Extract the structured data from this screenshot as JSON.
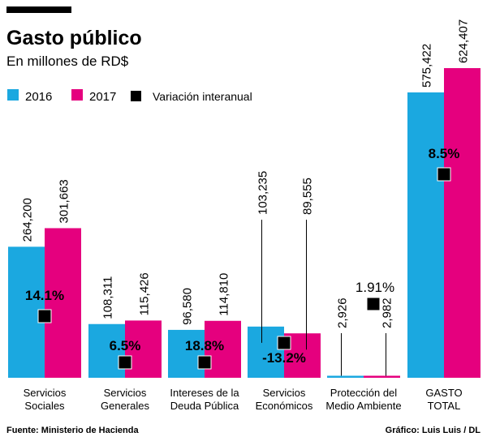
{
  "chart_data": {
    "type": "bar",
    "title": "Gasto público",
    "subtitle": "En millones de RD$",
    "categories": [
      [
        "Servicios",
        "Sociales"
      ],
      [
        "Servicios",
        "Generales"
      ],
      [
        "Intereses de la",
        "Deuda Pública"
      ],
      [
        "Servicios",
        "Económicos"
      ],
      [
        "Protección del",
        "Medio Ambiente"
      ],
      [
        "GASTO",
        "TOTAL"
      ]
    ],
    "series": [
      {
        "name": "2016",
        "color": "#1ba8e0",
        "values": [
          264200,
          108311,
          96580,
          103235,
          2926,
          575422
        ],
        "labels": [
          "264,200",
          "108,311",
          "96,580",
          "103,235",
          "2,926",
          "575,422"
        ]
      },
      {
        "name": "2017",
        "color": "#e5007e",
        "values": [
          301663,
          115426,
          114810,
          89555,
          2982,
          624407
        ],
        "labels": [
          "301,663",
          "115,426",
          "114,810",
          "89,555",
          "2,982",
          "624,407"
        ]
      }
    ],
    "variation": {
      "name": "Variación interanual",
      "color": "#000000",
      "values": [
        14.1,
        6.5,
        18.8,
        -13.2,
        1.91,
        8.5
      ],
      "labels": [
        "14.1%",
        "6.5%",
        "18.8%",
        "-13.2%",
        "1.91%",
        "8.5%"
      ]
    },
    "legend": "top-left",
    "grid": false
  },
  "footer": {
    "source": "Fuente: Ministerio de Hacienda",
    "credit": "Gráfico: Luis Luis / DL"
  }
}
